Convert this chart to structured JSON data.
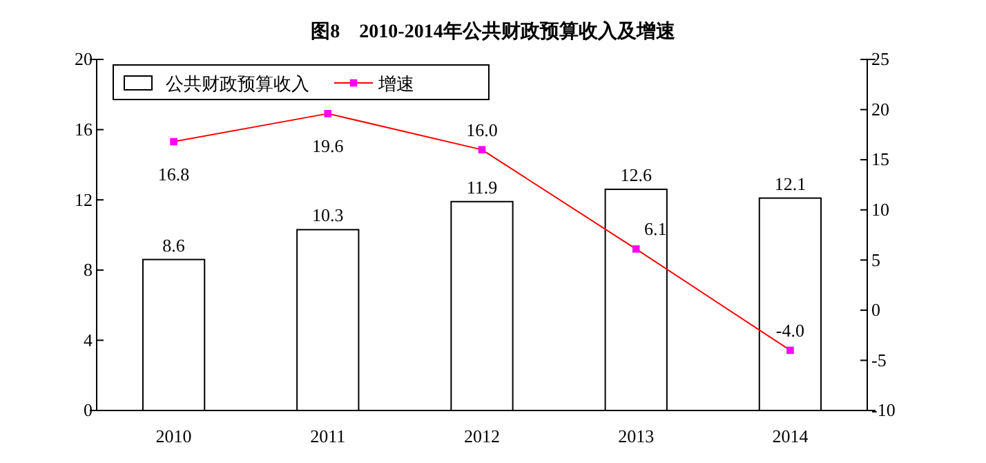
{
  "chart_data": {
    "type": "bar",
    "title": "图8　2010-2014年公共财政预算收入及增速",
    "categories": [
      "2010",
      "2011",
      "2012",
      "2013",
      "2014"
    ],
    "series": [
      {
        "name": "公共财政预算收入",
        "color": "#ffffff",
        "values": [
          8.6,
          10.3,
          11.9,
          12.6,
          12.1
        ]
      },
      {
        "name": "增速",
        "type": "line",
        "axis": "y2",
        "color": "#ff0000",
        "values": [
          16.8,
          19.6,
          16.0,
          6.1,
          -4.0
        ],
        "value_labels": [
          "16.8",
          "19.6",
          "16.0",
          "6.1",
          "-4.0"
        ]
      }
    ],
    "ylim": [
      0,
      20
    ],
    "yticks": [
      0,
      4,
      8,
      12,
      16,
      20
    ],
    "y2lim": [
      -10,
      25
    ],
    "y2ticks": [
      -10,
      -5,
      0,
      5,
      10,
      15,
      20,
      25
    ],
    "data_labels": true,
    "legend": "top left",
    "marker": "square",
    "grid": false
  }
}
